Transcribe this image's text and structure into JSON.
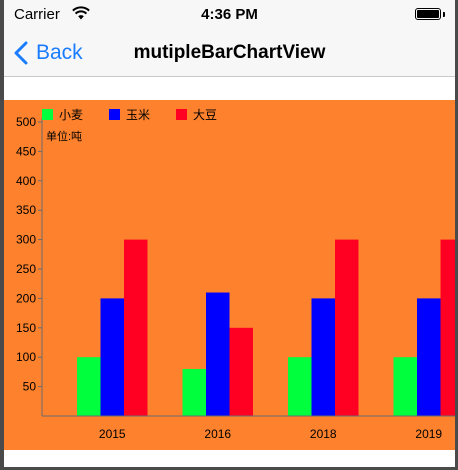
{
  "status_bar": {
    "carrier": "Carrier",
    "time": "4:36 PM"
  },
  "nav": {
    "back_label": "Back",
    "title": "mutipleBarChartView"
  },
  "colors": {
    "chart_background": "#fe822d",
    "nav_tint": "#1a7cff"
  },
  "legend": [
    {
      "label": "小麦",
      "color": "#00ff3c"
    },
    {
      "label": "玉米",
      "color": "#0000ff"
    },
    {
      "label": "大豆",
      "color": "#ff0022"
    }
  ],
  "unit_label": "单位:吨",
  "chart_data": {
    "type": "bar",
    "categories": [
      "2015",
      "2016",
      "2018",
      "2019"
    ],
    "series": [
      {
        "name": "小麦",
        "values": [
          100,
          80,
          100,
          100
        ]
      },
      {
        "name": "玉米",
        "values": [
          200,
          210,
          200,
          200
        ]
      },
      {
        "name": "大豆",
        "values": [
          300,
          150,
          300,
          300
        ]
      }
    ],
    "ylim": [
      0,
      500
    ],
    "yticks": [
      "50",
      "100",
      "150",
      "200",
      "250",
      "300",
      "350",
      "400",
      "450",
      "500"
    ],
    "legend_position": "top-left",
    "grid": false
  }
}
